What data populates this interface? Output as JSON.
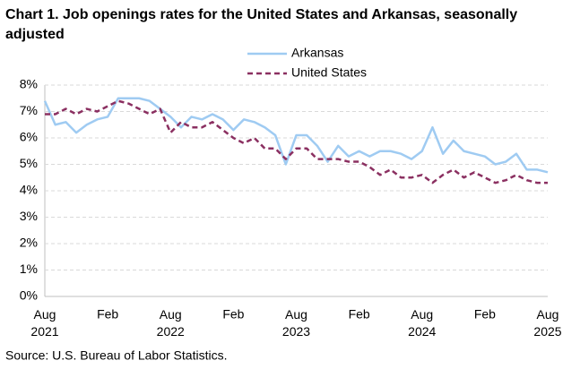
{
  "chart_data": {
    "type": "line",
    "title": "Chart 1. Job openings rates for the United States and Arkansas, seasonally adjusted",
    "source": "Source: U.S. Bureau of Labor Statistics.",
    "categories": [
      "Aug 2021",
      null,
      null,
      null,
      null,
      null,
      "Feb",
      null,
      null,
      null,
      null,
      null,
      "Aug 2022",
      null,
      null,
      null,
      null,
      null,
      "Feb",
      null,
      null,
      null,
      null,
      null,
      "Aug 2023",
      null,
      null,
      null,
      null,
      null,
      "Feb",
      null,
      null,
      null,
      null,
      null,
      "Aug 2024",
      null,
      null,
      null,
      null,
      null,
      "Feb",
      null,
      null,
      null,
      null,
      null,
      "Aug 2025"
    ],
    "series": [
      {
        "name": "Arkansas",
        "color": "#9fcbf2",
        "dash": false,
        "values": [
          7.4,
          6.5,
          6.6,
          6.2,
          6.5,
          6.7,
          6.8,
          7.5,
          7.5,
          7.5,
          7.4,
          7.1,
          6.8,
          6.4,
          6.8,
          6.7,
          6.9,
          6.7,
          6.3,
          6.7,
          6.6,
          6.4,
          6.1,
          5.0,
          6.1,
          6.1,
          5.7,
          5.1,
          5.7,
          5.3,
          5.5,
          5.3,
          5.5,
          5.5,
          5.4,
          5.2,
          5.5,
          6.4,
          5.4,
          5.9,
          5.5,
          5.4,
          5.3,
          5.0,
          5.1,
          5.4,
          4.8,
          4.8,
          4.7
        ]
      },
      {
        "name": "United States",
        "color": "#8b3061",
        "dash": true,
        "values": [
          6.9,
          6.9,
          7.1,
          6.9,
          7.1,
          7.0,
          7.2,
          7.4,
          7.3,
          7.1,
          6.9,
          7.1,
          6.2,
          6.6,
          6.4,
          6.4,
          6.6,
          6.3,
          6.0,
          5.8,
          6.0,
          5.6,
          5.6,
          5.2,
          5.6,
          5.6,
          5.2,
          5.2,
          5.2,
          5.1,
          5.1,
          4.9,
          4.6,
          4.8,
          4.5,
          4.5,
          4.6,
          4.3,
          4.6,
          4.8,
          4.5,
          4.7,
          4.5,
          4.3,
          4.4,
          4.6,
          4.4,
          4.3,
          4.3
        ]
      }
    ],
    "ylim": [
      0,
      8
    ],
    "yticks": [
      {
        "value": 0,
        "label": "0%"
      },
      {
        "value": 1,
        "label": "1%"
      },
      {
        "value": 2,
        "label": "2%"
      },
      {
        "value": 3,
        "label": "3%"
      },
      {
        "value": 4,
        "label": "4%"
      },
      {
        "value": 5,
        "label": "5%"
      },
      {
        "value": 6,
        "label": "6%"
      },
      {
        "value": 7,
        "label": "7%"
      },
      {
        "value": 8,
        "label": "8%"
      }
    ],
    "grid": true
  }
}
